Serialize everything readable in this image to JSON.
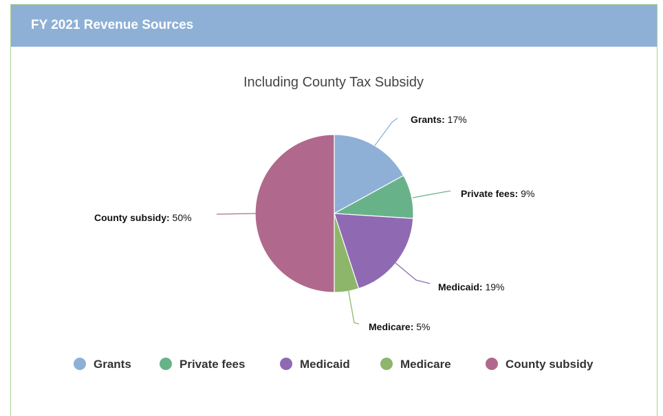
{
  "header": {
    "title": "FY 2021 Revenue Sources"
  },
  "chart_data": {
    "type": "pie",
    "title": "Including County Tax Subsidy",
    "slices": [
      {
        "name": "Grants",
        "value": 17,
        "color": "#8eb0d6"
      },
      {
        "name": "Private fees",
        "value": 9,
        "color": "#68b28a"
      },
      {
        "name": "Medicaid",
        "value": 19,
        "color": "#8f6ab3"
      },
      {
        "name": "Medicare",
        "value": 5,
        "color": "#8db66b"
      },
      {
        "name": "County subsidy",
        "value": 50,
        "color": "#b0698c"
      }
    ],
    "unit_suffix": "%",
    "legend_position": "bottom",
    "start_angle": "12 o'clock, clockwise"
  }
}
